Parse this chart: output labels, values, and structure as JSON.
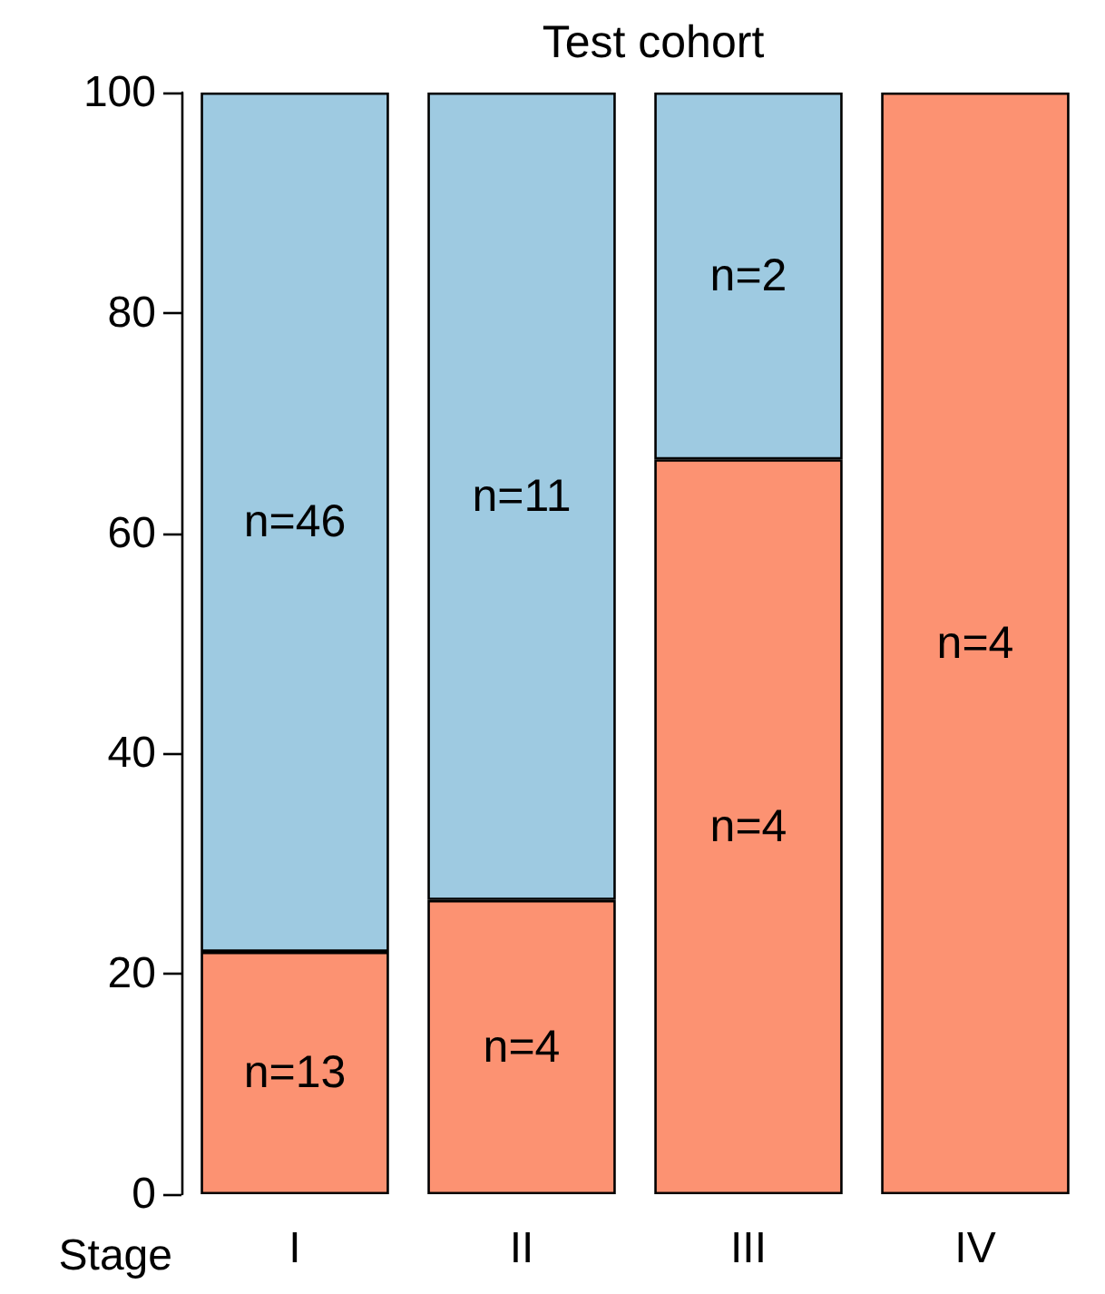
{
  "chart_data": {
    "type": "bar",
    "title": "Test cohort",
    "xlabel": "Stage",
    "categories": [
      "I",
      "II",
      "III",
      "IV"
    ],
    "stacked": true,
    "series": [
      {
        "color": "#fc9272",
        "values": [
          22,
          26.7,
          66.7,
          100
        ]
      },
      {
        "color": "#9ecae1",
        "values": [
          78,
          73.3,
          33.3,
          null
        ]
      }
    ],
    "annotations": [
      "n=13",
      "n=4",
      "n=4",
      "n=4",
      "n=46",
      "n=11",
      "n=2"
    ],
    "ylim": [
      0,
      100
    ],
    "yticks": [
      0,
      20,
      40,
      60,
      80,
      100
    ]
  }
}
